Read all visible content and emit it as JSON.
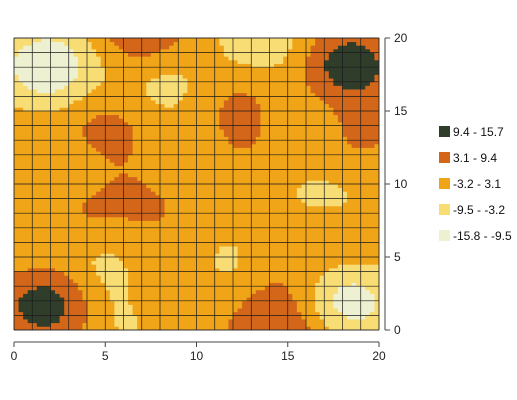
{
  "chart_data": {
    "type": "heatmap",
    "title": "",
    "xlabel": "",
    "ylabel": "",
    "xlim": [
      0,
      20
    ],
    "ylim": [
      0,
      20
    ],
    "x_ticks": [
      0,
      5,
      10,
      15,
      20
    ],
    "y_ticks": [
      0,
      5,
      10,
      15,
      20
    ],
    "y_axis_position": "right",
    "grid": true,
    "grid_step": 1,
    "legend": {
      "position": "right",
      "entries": [
        {
          "label": "9.4 - 15.7",
          "color": "#2f3d2a"
        },
        {
          "label": "3.1 - 9.4",
          "color": "#d4661a"
        },
        {
          "label": "-3.2 - 3.1",
          "color": "#f0a417"
        },
        {
          "label": "-9.5 - -3.2",
          "color": "#f8dc74"
        },
        {
          "label": "-15.8 - -9.5",
          "color": "#eef0d2"
        }
      ]
    },
    "band_breaks": [
      -15.8,
      -9.5,
      -3.2,
      3.1,
      9.4,
      15.7
    ],
    "band_colors": [
      "#eef0d2",
      "#f8dc74",
      "#f0a417",
      "#d4661a",
      "#2f3d2a"
    ],
    "peaks": [
      {
        "x": 18,
        "y": 18,
        "value": 15
      },
      {
        "x": 2,
        "y": 2,
        "value": 15
      },
      {
        "x": 7,
        "y": 20,
        "value": 10
      },
      {
        "x": 15,
        "y": 0,
        "value": 10
      },
      {
        "x": 0,
        "y": 12,
        "value": 5
      },
      {
        "x": 3,
        "y": 8,
        "value": 7
      },
      {
        "x": 5,
        "y": 14,
        "value": 7
      },
      {
        "x": 13,
        "y": 16,
        "value": 7
      },
      {
        "x": 18,
        "y": 13,
        "value": 6
      },
      {
        "x": 17,
        "y": 6,
        "value": 6
      },
      {
        "x": 8,
        "y": 3,
        "value": 7
      },
      {
        "x": 14,
        "y": 3,
        "value": 6
      },
      {
        "x": 12,
        "y": 12,
        "value": 5
      },
      {
        "x": 8,
        "y": 9,
        "value": 5
      }
    ],
    "troughs": [
      {
        "x": 2,
        "y": 18,
        "value": -15
      },
      {
        "x": 18,
        "y": 2,
        "value": -15
      },
      {
        "x": 14,
        "y": 19.5,
        "value": -10
      },
      {
        "x": 8,
        "y": 17,
        "value": -8
      },
      {
        "x": 16,
        "y": 15,
        "value": -8
      },
      {
        "x": 2,
        "y": 11,
        "value": -7
      },
      {
        "x": 10,
        "y": 11,
        "value": -6
      },
      {
        "x": 17,
        "y": 9,
        "value": -7
      },
      {
        "x": 5,
        "y": 4,
        "value": -8
      },
      {
        "x": 12,
        "y": 4,
        "value": -8
      },
      {
        "x": 1,
        "y": 6,
        "value": -6
      },
      {
        "x": 6,
        "y": 1,
        "value": -6
      }
    ]
  }
}
